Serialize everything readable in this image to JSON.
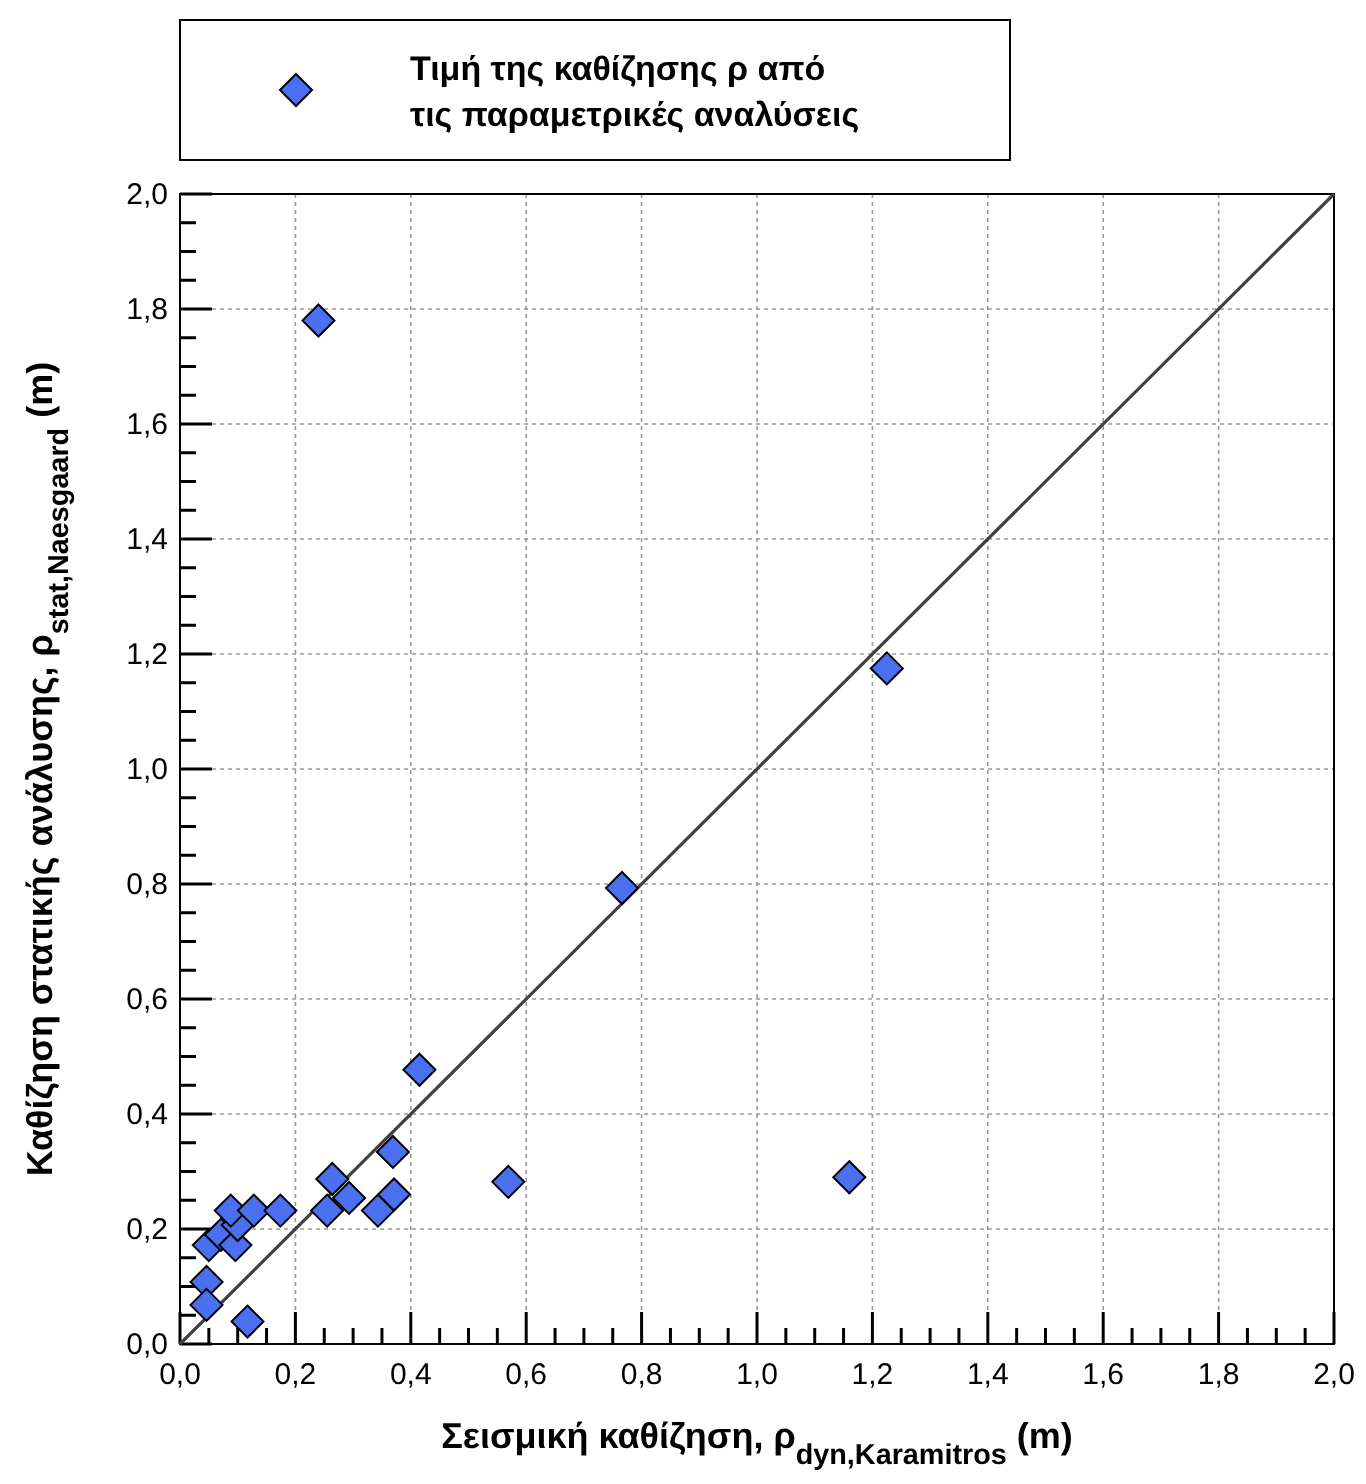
{
  "chart_data": {
    "type": "scatter",
    "xlabel": "Σεισμική καθίζηση, ρ$_{dyn,Karamitros}$ (m)",
    "ylabel": "Καθίζηση στατικής ανάλυσης, ρ$_{stat,Naesgaard}$ (m)",
    "xlim": [
      0,
      2
    ],
    "ylim": [
      0,
      2
    ],
    "xticks": [
      {
        "value": 0,
        "label": "0,0"
      },
      {
        "value": 0.05,
        "label": null
      },
      {
        "value": 0.1,
        "label": null
      },
      {
        "value": 0.15,
        "label": null
      },
      {
        "value": 0.2,
        "label": "0,2"
      },
      {
        "value": 0.25,
        "label": null
      },
      {
        "value": 0.3,
        "label": null
      },
      {
        "value": 0.35,
        "label": null
      },
      {
        "value": 0.4,
        "label": "0,4"
      },
      {
        "value": 0.45,
        "label": null
      },
      {
        "value": 0.5,
        "label": null
      },
      {
        "value": 0.55,
        "label": null
      },
      {
        "value": 0.6,
        "label": "0,6"
      },
      {
        "value": 0.65,
        "label": null
      },
      {
        "value": 0.7,
        "label": null
      },
      {
        "value": 0.75,
        "label": null
      },
      {
        "value": 0.8,
        "label": "0,8"
      },
      {
        "value": 0.85,
        "label": null
      },
      {
        "value": 0.9,
        "label": null
      },
      {
        "value": 0.95,
        "label": null
      },
      {
        "value": 1,
        "label": "1,0"
      },
      {
        "value": 1.05,
        "label": null
      },
      {
        "value": 1.1,
        "label": null
      },
      {
        "value": 1.15,
        "label": null
      },
      {
        "value": 1.2,
        "label": "1,2"
      },
      {
        "value": 1.25,
        "label": null
      },
      {
        "value": 1.3,
        "label": null
      },
      {
        "value": 1.35,
        "label": null
      },
      {
        "value": 1.4,
        "label": "1,4"
      },
      {
        "value": 1.45,
        "label": null
      },
      {
        "value": 1.5,
        "label": null
      },
      {
        "value": 1.55,
        "label": null
      },
      {
        "value": 1.6,
        "label": "1,6"
      },
      {
        "value": 1.65,
        "label": null
      },
      {
        "value": 1.7,
        "label": null
      },
      {
        "value": 1.75,
        "label": null
      },
      {
        "value": 1.8,
        "label": "1,8"
      },
      {
        "value": 1.85,
        "label": null
      },
      {
        "value": 1.9,
        "label": null
      },
      {
        "value": 1.95,
        "label": null
      },
      {
        "value": 2,
        "label": "2,0"
      }
    ],
    "yticks": [
      {
        "value": 0,
        "label": "0,0"
      },
      {
        "value": 0.05,
        "label": null
      },
      {
        "value": 0.1,
        "label": null
      },
      {
        "value": 0.15,
        "label": null
      },
      {
        "value": 0.2,
        "label": "0,2"
      },
      {
        "value": 0.25,
        "label": null
      },
      {
        "value": 0.3,
        "label": null
      },
      {
        "value": 0.35,
        "label": null
      },
      {
        "value": 0.4,
        "label": "0,4"
      },
      {
        "value": 0.45,
        "label": null
      },
      {
        "value": 0.5,
        "label": null
      },
      {
        "value": 0.55,
        "label": null
      },
      {
        "value": 0.6,
        "label": "0,6"
      },
      {
        "value": 0.65,
        "label": null
      },
      {
        "value": 0.7,
        "label": null
      },
      {
        "value": 0.75,
        "label": null
      },
      {
        "value": 0.8,
        "label": "0,8"
      },
      {
        "value": 0.85,
        "label": null
      },
      {
        "value": 0.9,
        "label": null
      },
      {
        "value": 0.95,
        "label": null
      },
      {
        "value": 1,
        "label": "1,0"
      },
      {
        "value": 1.05,
        "label": null
      },
      {
        "value": 1.1,
        "label": null
      },
      {
        "value": 1.15,
        "label": null
      },
      {
        "value": 1.2,
        "label": "1,2"
      },
      {
        "value": 1.25,
        "label": null
      },
      {
        "value": 1.3,
        "label": null
      },
      {
        "value": 1.35,
        "label": null
      },
      {
        "value": 1.4,
        "label": "1,4"
      },
      {
        "value": 1.45,
        "label": null
      },
      {
        "value": 1.5,
        "label": null
      },
      {
        "value": 1.55,
        "label": null
      },
      {
        "value": 1.6,
        "label": "1,6"
      },
      {
        "value": 1.65,
        "label": null
      },
      {
        "value": 1.7,
        "label": null
      },
      {
        "value": 1.75,
        "label": null
      },
      {
        "value": 1.8,
        "label": "1,8"
      },
      {
        "value": 1.85,
        "label": null
      },
      {
        "value": 1.9,
        "label": null
      },
      {
        "value": 1.95,
        "label": null
      },
      {
        "value": 2,
        "label": "2,0"
      }
    ],
    "grid": true,
    "legend": "top",
    "series": [
      {
        "type": "line",
        "color": "#404040",
        "marker": "none",
        "line_style": "solid",
        "x": [
          0,
          2
        ],
        "values": [
          0,
          2
        ]
      },
      {
        "name": "Τιμή της καθίζησης ρ από τις παραμετρικές αναλύσεις",
        "color": "#4a70f0",
        "marker": "diamond",
        "x": [
          0.046,
          0.046,
          0.117,
          0.05,
          0.071,
          0.096,
          0.1,
          0.088,
          0.128,
          0.174,
          0.255,
          0.264,
          0.293,
          0.343,
          0.371,
          0.369,
          0.415,
          0.569,
          0.766,
          1.225,
          1.16,
          0.24
        ],
        "values": [
          0.108,
          0.068,
          0.039,
          0.172,
          0.19,
          0.172,
          0.207,
          0.232,
          0.232,
          0.232,
          0.232,
          0.287,
          0.254,
          0.232,
          0.26,
          0.334,
          0.477,
          0.282,
          0.793,
          1.175,
          0.29,
          1.78
        ]
      }
    ]
  }
}
